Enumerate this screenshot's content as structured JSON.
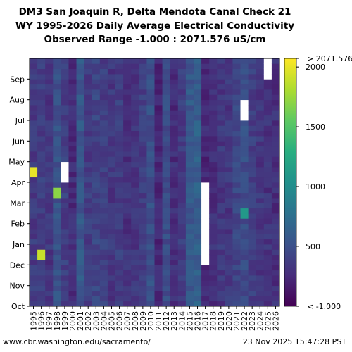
{
  "title_lines": [
    "DM3 San Joaquin R, Delta Mendota Canal Check 21",
    "WY 1995-2026 Daily Average Electrical Conductivity",
    "Observed Range -1.000 : 2071.576 uS/cm"
  ],
  "footer": {
    "left": "www.cbr.washington.edu/sacramento/",
    "right": "23 Nov 2025 15:47:28 PST"
  },
  "chart_data": {
    "type": "heatmap",
    "x_categories": [
      "1995",
      "1996",
      "1997",
      "1998",
      "1999",
      "2000",
      "2001",
      "2002",
      "2003",
      "2004",
      "2005",
      "2006",
      "2007",
      "2008",
      "2009",
      "2010",
      "2011",
      "2012",
      "2013",
      "2014",
      "2015",
      "2016",
      "2017",
      "2018",
      "2019",
      "2020",
      "2021",
      "2022",
      "2023",
      "2024",
      "2025",
      "2026"
    ],
    "y_categories": [
      "Oct",
      "Nov",
      "Dec",
      "Jan",
      "Feb",
      "Mar",
      "Apr",
      "May",
      "Jun",
      "Jul",
      "Aug",
      "Sep"
    ],
    "colorbar": {
      "min": -1.0,
      "max": 2071.576,
      "ticks": [
        500,
        1000,
        1500,
        2000
      ],
      "min_label": "< -1.000",
      "max_label": "> 2071.576",
      "colormap": "viridis"
    },
    "typical_values_by_year": [
      350,
      380,
      320,
      520,
      380,
      260,
      560,
      360,
      420,
      380,
      330,
      380,
      300,
      330,
      370,
      500,
      230,
      470,
      260,
      360,
      560,
      620,
      230,
      280,
      330,
      330,
      430,
      480,
      380,
      330,
      300,
      280
    ],
    "highlights": [
      {
        "year": "1995",
        "month": "Apr",
        "value": 2000
      },
      {
        "year": "1996",
        "month": "Dec",
        "value": 1900
      },
      {
        "year": "1998",
        "month": "Mar",
        "value": 1700
      },
      {
        "year": "2022",
        "month": "Feb",
        "value": 1100
      }
    ],
    "missing_periods": [
      {
        "year": "2017",
        "from": "Dec",
        "to": "Mar"
      },
      {
        "year": "1999",
        "month": "Apr"
      },
      {
        "year": "2025",
        "month": "Sep"
      },
      {
        "year": "2022",
        "month": "Jul"
      }
    ]
  }
}
